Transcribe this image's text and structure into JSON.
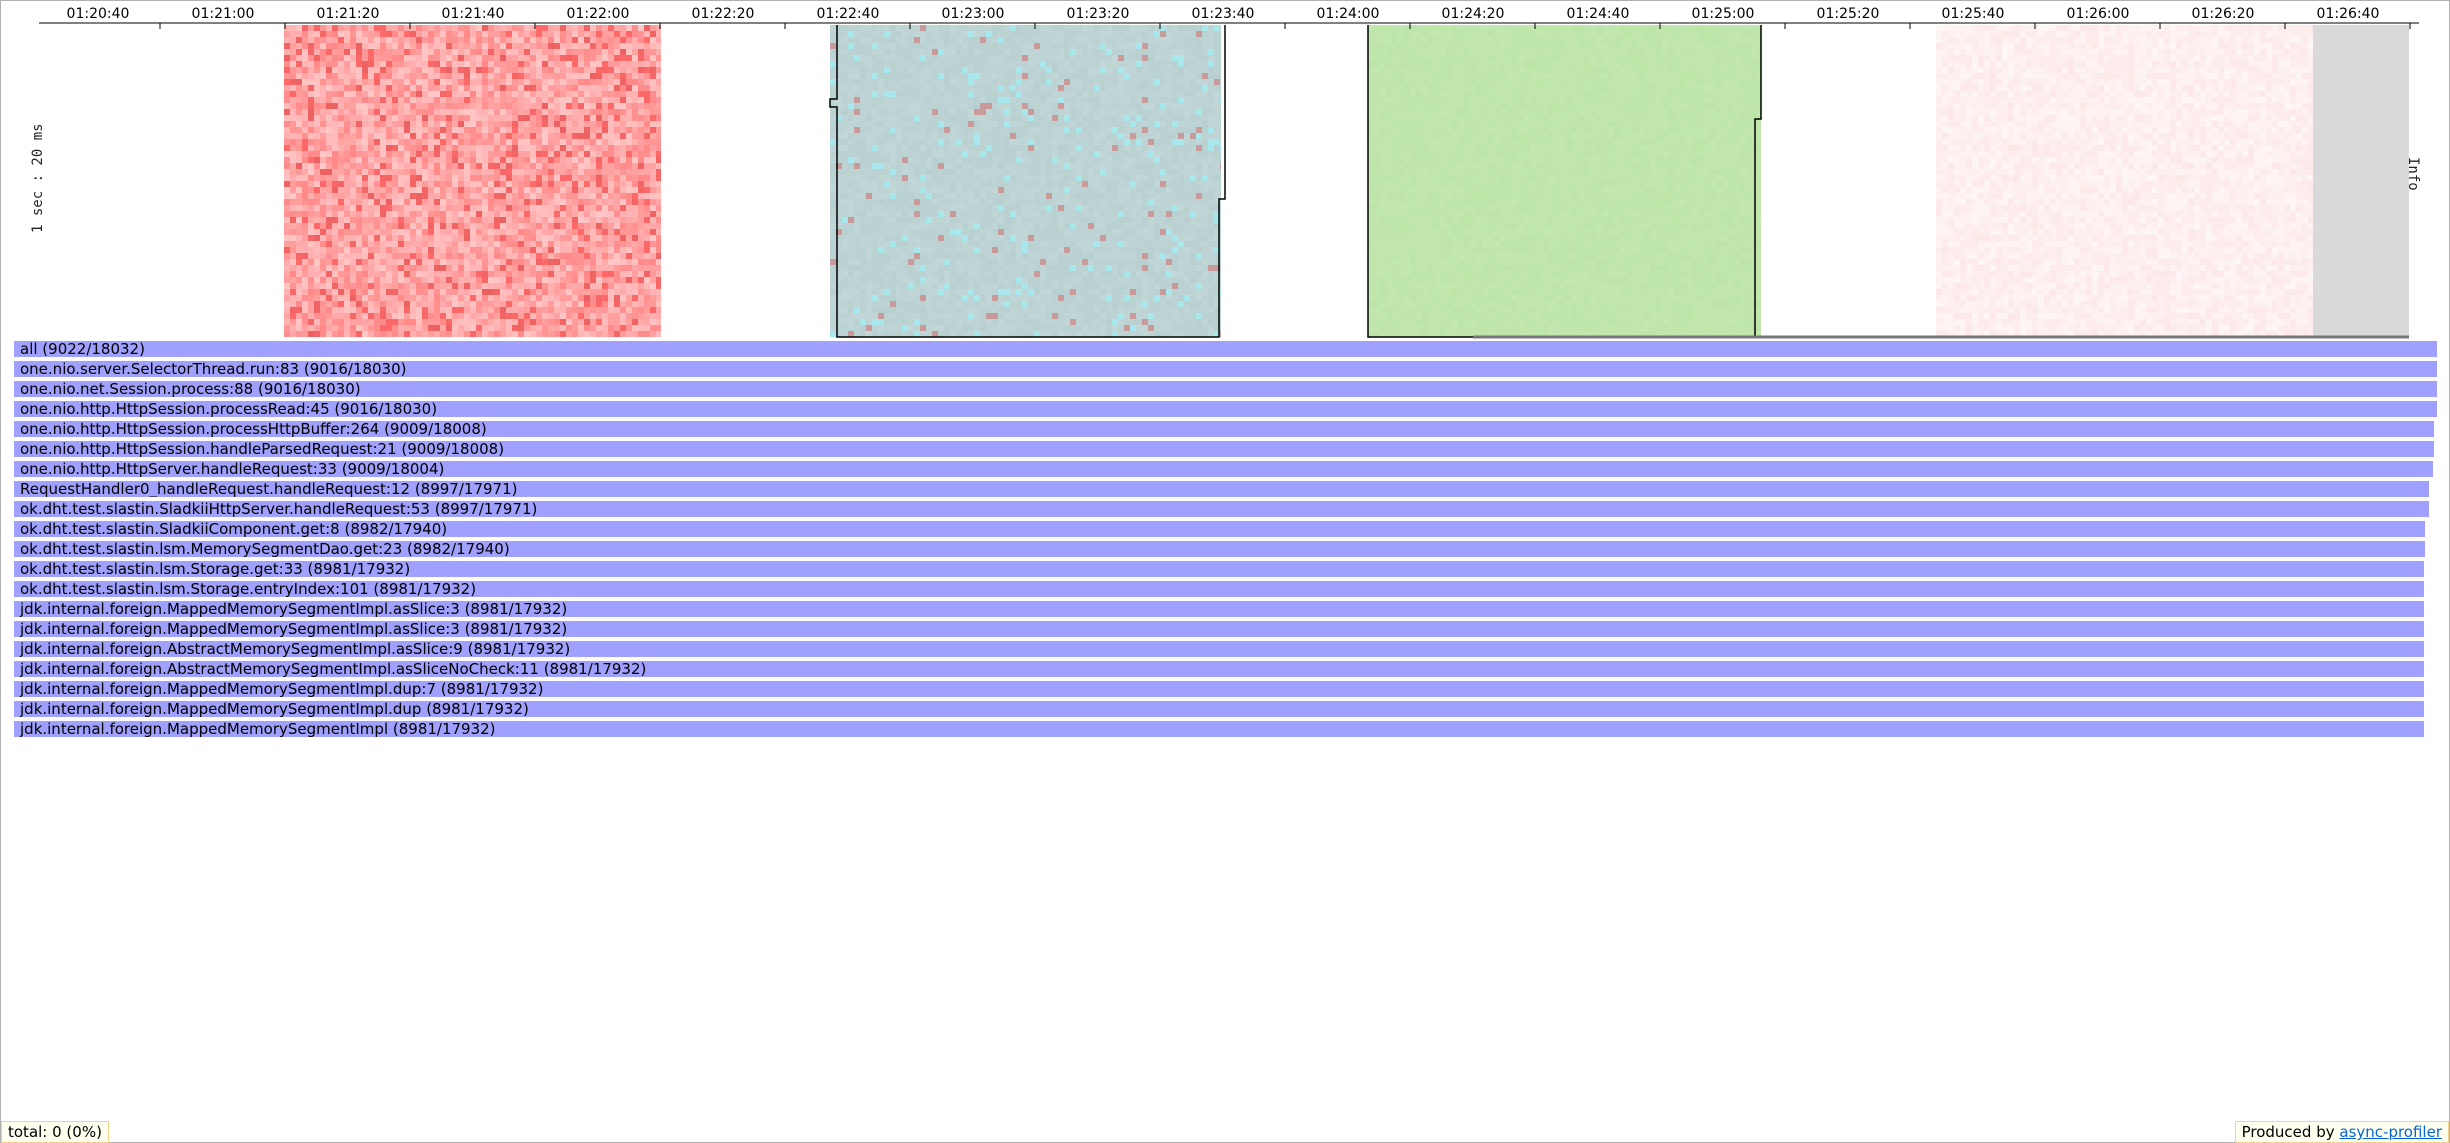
{
  "timeline": {
    "tick_labels": [
      "01:20:40",
      "01:21:00",
      "01:21:20",
      "01:21:40",
      "01:22:00",
      "01:22:20",
      "01:22:40",
      "01:23:00",
      "01:23:20",
      "01:23:40",
      "01:24:00",
      "01:24:20",
      "01:24:40",
      "01:25:00",
      "01:25:20",
      "01:25:40",
      "01:26:00",
      "01:26:20",
      "01:26:40"
    ],
    "vertical_label": "1 sec : 20 ms",
    "right_label": "Info",
    "colors": {
      "cpu_red": "#ff6a6a",
      "alloc_teal": "#b8d0d0",
      "wall_green": "#bde5a8",
      "lock_pink": "#fde8e8",
      "idle_gray": "#d9d9d9"
    }
  },
  "flamegraph": {
    "bar_color": "#a0a0ff",
    "frames": [
      {
        "label": "all (9022/18032)",
        "samples": 18032
      },
      {
        "label": "one.nio.server.SelectorThread.run:83 (9016/18030)",
        "samples": 18030
      },
      {
        "label": "one.nio.net.Session.process:88 (9016/18030)",
        "samples": 18030
      },
      {
        "label": "one.nio.http.HttpSession.processRead:45 (9016/18030)",
        "samples": 18030
      },
      {
        "label": "one.nio.http.HttpSession.processHttpBuffer:264 (9009/18008)",
        "samples": 18008
      },
      {
        "label": "one.nio.http.HttpSession.handleParsedRequest:21 (9009/18008)",
        "samples": 18008
      },
      {
        "label": "one.nio.http.HttpServer.handleRequest:33 (9009/18004)",
        "samples": 18004
      },
      {
        "label": "RequestHandler0_handleRequest.handleRequest:12 (8997/17971)",
        "samples": 17971
      },
      {
        "label": "ok.dht.test.slastin.SladkiiHttpServer.handleRequest:53 (8997/17971)",
        "samples": 17971
      },
      {
        "label": "ok.dht.test.slastin.SladkiiComponent.get:8 (8982/17940)",
        "samples": 17940
      },
      {
        "label": "ok.dht.test.slastin.lsm.MemorySegmentDao.get:23 (8982/17940)",
        "samples": 17940
      },
      {
        "label": "ok.dht.test.slastin.lsm.Storage.get:33 (8981/17932)",
        "samples": 17932
      },
      {
        "label": "ok.dht.test.slastin.lsm.Storage.entryIndex:101 (8981/17932)",
        "samples": 17932
      },
      {
        "label": "jdk.internal.foreign.MappedMemorySegmentImpl.asSlice:3 (8981/17932)",
        "samples": 17932
      },
      {
        "label": "jdk.internal.foreign.MappedMemorySegmentImpl.asSlice:3 (8981/17932)",
        "samples": 17932
      },
      {
        "label": "jdk.internal.foreign.AbstractMemorySegmentImpl.asSlice:9 (8981/17932)",
        "samples": 17932
      },
      {
        "label": "jdk.internal.foreign.AbstractMemorySegmentImpl.asSliceNoCheck:11 (8981/17932)",
        "samples": 17932
      },
      {
        "label": "jdk.internal.foreign.MappedMemorySegmentImpl.dup:7 (8981/17932)",
        "samples": 17932
      },
      {
        "label": "jdk.internal.foreign.MappedMemorySegmentImpl.dup (8981/17932)",
        "samples": 17932
      },
      {
        "label": "jdk.internal.foreign.MappedMemorySegmentImpl (8981/17932)",
        "samples": 17932
      }
    ]
  },
  "footer": {
    "total_text": "total: 0 (0%)",
    "produced_prefix": "Produced by",
    "produced_link": "async-profiler"
  }
}
